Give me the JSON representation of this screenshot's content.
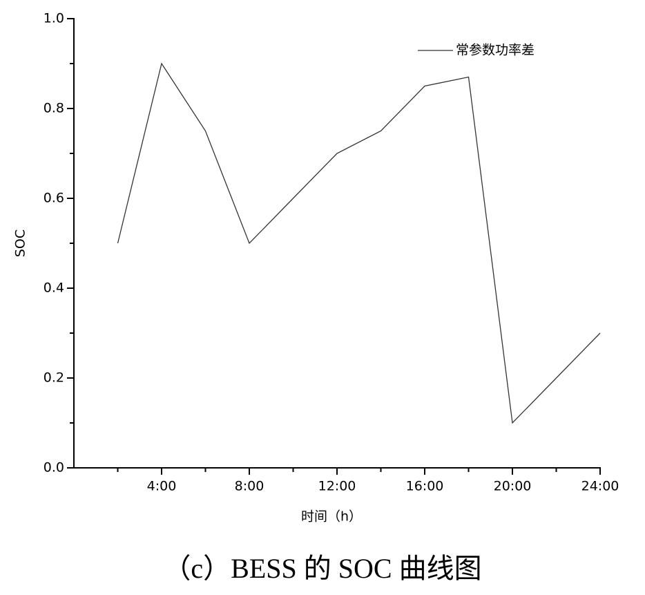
{
  "chart_data": {
    "type": "line",
    "title": "（c）BESS 的 SOC 曲线图",
    "xlabel": "时间（h）",
    "ylabel": "SOC",
    "x": [
      2,
      4,
      6,
      8,
      10,
      12,
      14,
      16,
      18,
      20,
      22,
      24
    ],
    "series": [
      {
        "name": "常参数功率差",
        "color": "#333333",
        "values": [
          0.5,
          0.9,
          0.75,
          0.5,
          0.6,
          0.7,
          0.75,
          0.85,
          0.87,
          0.1,
          0.2,
          0.3
        ]
      }
    ],
    "xlim": [
      0,
      24
    ],
    "xticks": [
      {
        "value": 4,
        "label": "4:00"
      },
      {
        "value": 8,
        "label": "8:00"
      },
      {
        "value": 12,
        "label": "12:00"
      },
      {
        "value": 16,
        "label": "16:00"
      },
      {
        "value": 20,
        "label": "20:00"
      },
      {
        "value": 24,
        "label": "24:00"
      }
    ],
    "xminorticks": [
      2,
      6,
      10,
      14,
      18,
      22
    ],
    "ylim": [
      0,
      1
    ],
    "yticks": [
      {
        "value": 0,
        "label": "0.0"
      },
      0.2,
      0.4,
      0.6,
      0.8,
      {
        "value": 1,
        "label": "1.0"
      }
    ],
    "yminorticks": [
      0.1,
      0.3,
      0.5,
      0.7,
      0.9
    ],
    "legend": "upper-right",
    "grid": false
  }
}
